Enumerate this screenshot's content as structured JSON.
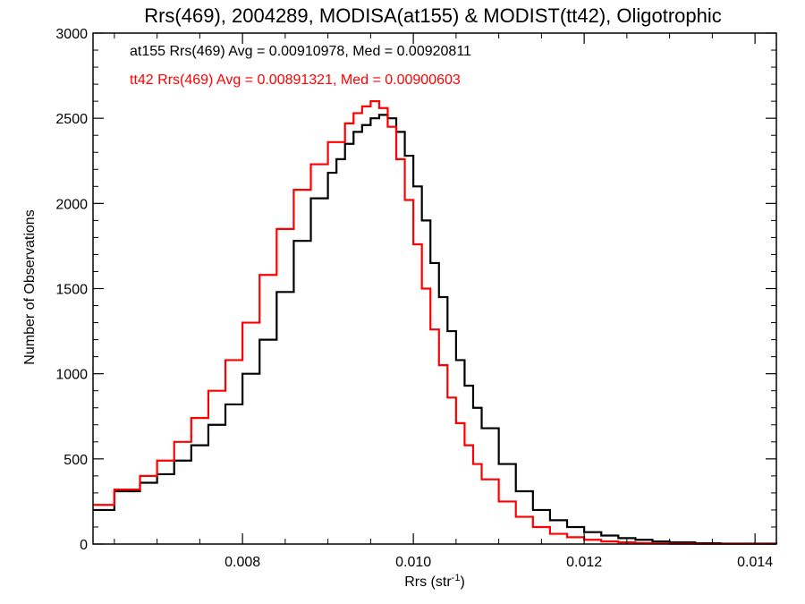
{
  "chart_data": {
    "type": "line",
    "title": "Rrs(469), 2004289, MODISA(at155) & MODIST(tt42), Oligotrophic",
    "xlabel": "Rrs (str",
    "xlabel_sup": "-1",
    "xlabel_close": ")",
    "ylabel": "Number of Observations",
    "xlim": [
      0.00625,
      0.01425
    ],
    "ylim": [
      0,
      3000
    ],
    "xticks": [
      0.008,
      0.01,
      0.012,
      0.014
    ],
    "xtick_labels": [
      "0.008",
      "0.010",
      "0.012",
      "0.014"
    ],
    "yticks": [
      0,
      500,
      1000,
      1500,
      2000,
      2500,
      3000
    ],
    "ytick_labels": [
      "0",
      "500",
      "1000",
      "1500",
      "2000",
      "2500",
      "3000"
    ],
    "grid": false,
    "step": true,
    "annotations": [
      "at155 Rrs(469) Avg = 0.00910978, Med = 0.00920811",
      "tt42 Rrs(469) Avg = 0.00891321, Med = 0.00900603"
    ],
    "series": [
      {
        "color": "#000000",
        "x": [
          0.00625,
          0.0065,
          0.0068,
          0.007,
          0.0072,
          0.0074,
          0.0076,
          0.0078,
          0.008,
          0.0082,
          0.0084,
          0.0086,
          0.0088,
          0.009,
          0.0091,
          0.0092,
          0.0093,
          0.0094,
          0.0095,
          0.0096,
          0.0097,
          0.0098,
          0.0099,
          0.01,
          0.0101,
          0.0102,
          0.0103,
          0.0104,
          0.0105,
          0.0106,
          0.0107,
          0.0108,
          0.011,
          0.0112,
          0.0114,
          0.0116,
          0.0118,
          0.012,
          0.0122,
          0.0124,
          0.0126,
          0.0128,
          0.013,
          0.0133,
          0.0136,
          0.01425
        ],
        "y": [
          200,
          310,
          360,
          410,
          490,
          580,
          700,
          820,
          1000,
          1200,
          1480,
          1780,
          2030,
          2180,
          2260,
          2350,
          2420,
          2460,
          2500,
          2520,
          2500,
          2420,
          2280,
          2100,
          1900,
          1650,
          1450,
          1250,
          1080,
          930,
          800,
          680,
          470,
          310,
          200,
          140,
          100,
          70,
          50,
          35,
          25,
          15,
          10,
          5,
          3,
          0
        ]
      },
      {
        "color": "#ff0000",
        "x": [
          0.00625,
          0.0065,
          0.0068,
          0.007,
          0.0072,
          0.0074,
          0.0076,
          0.0078,
          0.008,
          0.0082,
          0.0084,
          0.0086,
          0.0088,
          0.009,
          0.0092,
          0.0093,
          0.0094,
          0.0095,
          0.0096,
          0.0097,
          0.0098,
          0.0099,
          0.01,
          0.0101,
          0.0102,
          0.0103,
          0.0104,
          0.0105,
          0.0106,
          0.0107,
          0.0108,
          0.011,
          0.0112,
          0.0114,
          0.0116,
          0.0118,
          0.012,
          0.0122,
          0.0124,
          0.0126,
          0.0128,
          0.013,
          0.0133,
          0.01425
        ],
        "y": [
          230,
          320,
          400,
          490,
          600,
          740,
          900,
          1080,
          1300,
          1580,
          1850,
          2080,
          2230,
          2360,
          2470,
          2530,
          2570,
          2600,
          2560,
          2450,
          2260,
          2020,
          1760,
          1500,
          1260,
          1050,
          860,
          710,
          580,
          470,
          380,
          250,
          160,
          100,
          60,
          40,
          25,
          15,
          10,
          6,
          4,
          2,
          1,
          0
        ]
      }
    ]
  }
}
